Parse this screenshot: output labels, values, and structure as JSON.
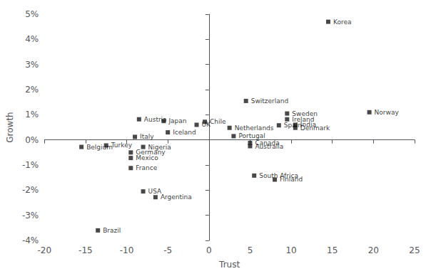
{
  "chart_data": {
    "type": "scatter",
    "xlabel": "Trust",
    "ylabel": "Growth",
    "labels": [
      "Korea",
      "Norway",
      "Switzerland",
      "Sweden",
      "Ireland",
      "India",
      "Denmark",
      "Spain",
      "Netherlands",
      "Portugal",
      "Canada",
      "Australia",
      "Chile",
      "UK",
      "Iceland",
      "Japan",
      "Austria",
      "Italy",
      "Nigeria",
      "Germany",
      "Mexico",
      "France",
      "Turkey",
      "Belgium",
      "South Africa",
      "Finland",
      "USA",
      "Argentina",
      "Brazil"
    ],
    "x": [
      14.5,
      19.5,
      4.5,
      9.5,
      9.5,
      10.5,
      10.5,
      8.5,
      2.5,
      3.0,
      5.0,
      5.0,
      -0.5,
      -1.5,
      -5.0,
      -5.5,
      -8.5,
      -9.0,
      -8.0,
      -9.5,
      -9.5,
      -9.5,
      -12.5,
      -15.5,
      5.5,
      8.0,
      -8.0,
      -6.5,
      -13.5
    ],
    "values": [
      4.7,
      1.1,
      1.55,
      1.05,
      0.82,
      0.6,
      0.48,
      0.58,
      0.48,
      0.15,
      -0.12,
      -0.25,
      0.72,
      0.6,
      0.3,
      0.75,
      0.82,
      0.12,
      -0.28,
      -0.5,
      -0.72,
      -1.12,
      -0.22,
      -0.28,
      -1.42,
      -1.58,
      -2.05,
      -2.28,
      -3.6
    ],
    "color": "#1a1a1a",
    "marker": "square",
    "xlim": [
      -20,
      25
    ],
    "ylim": [
      -4,
      5
    ],
    "xticks": [
      -20,
      -15,
      -10,
      -5,
      0,
      5,
      10,
      15,
      20,
      25
    ],
    "yticks": [
      {
        "value": -4,
        "label": "-4%"
      },
      {
        "value": -3,
        "label": "-3%"
      },
      {
        "value": -2,
        "label": "-2%"
      },
      {
        "value": -1,
        "label": "-1%"
      },
      {
        "value": 0,
        "label": "0%"
      },
      {
        "value": 1,
        "label": "1%"
      },
      {
        "value": 2,
        "label": "2%"
      },
      {
        "value": 3,
        "label": "3%"
      },
      {
        "value": 4,
        "label": "4%"
      },
      {
        "value": 5,
        "label": "5%"
      }
    ],
    "grid": false
  }
}
